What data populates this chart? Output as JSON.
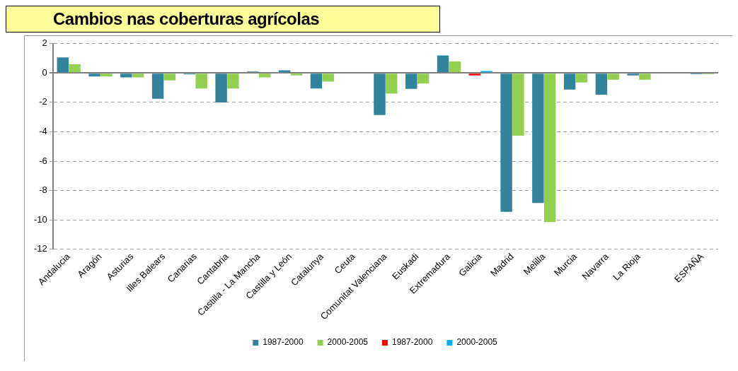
{
  "chart_data": {
    "type": "bar",
    "title": "Cambios nas coberturas agrícolas",
    "categories": [
      "Andalucia",
      "Aragón",
      "Asturias",
      "Illes Balears",
      "Canarias",
      "Cantabria",
      "Castilla - La Mancha",
      "Castilla y León",
      "Catalunya",
      "Ceuta",
      "Comunitat Valenciana",
      "Euskadi",
      "Extremadura",
      "Galicia",
      "Madrid",
      "Melilla",
      "Murcia",
      "Navarra",
      "La Rioja",
      null,
      "ESPAÑA"
    ],
    "series": [
      {
        "name": "1987-2000",
        "color": "#31849b",
        "values": [
          1.07,
          -0.23,
          -0.3,
          -1.75,
          -0.09,
          -2.0,
          0.1,
          0.18,
          -1.05,
          null,
          -2.86,
          -1.08,
          1.2,
          null,
          -9.45,
          -8.85,
          -1.12,
          -1.47,
          -0.16,
          null,
          -0.08
        ]
      },
      {
        "name": "2000-2005",
        "color": "#92d050",
        "values": [
          0.59,
          -0.23,
          -0.3,
          -0.5,
          -1.05,
          -1.05,
          -0.29,
          -0.16,
          -0.59,
          null,
          -1.4,
          -0.72,
          0.79,
          null,
          -4.27,
          -10.15,
          -0.65,
          -0.45,
          -0.45,
          null,
          -0.08
        ]
      },
      {
        "name": "1987-2000",
        "color": "#ff0000",
        "values": [
          null,
          null,
          null,
          null,
          null,
          null,
          null,
          null,
          null,
          null,
          null,
          null,
          null,
          -0.16,
          null,
          null,
          null,
          null,
          null,
          null,
          null
        ]
      },
      {
        "name": "2000-2005",
        "color": "#00b0f0",
        "values": [
          null,
          null,
          null,
          null,
          null,
          null,
          null,
          null,
          null,
          null,
          null,
          null,
          null,
          0.14,
          null,
          null,
          null,
          null,
          null,
          null,
          null
        ]
      }
    ],
    "ylim": [
      -12,
      2
    ],
    "yticks": [
      -12,
      -10,
      -8,
      -6,
      -4,
      -2,
      0,
      2
    ],
    "grid": "y",
    "legend": "bottom"
  }
}
